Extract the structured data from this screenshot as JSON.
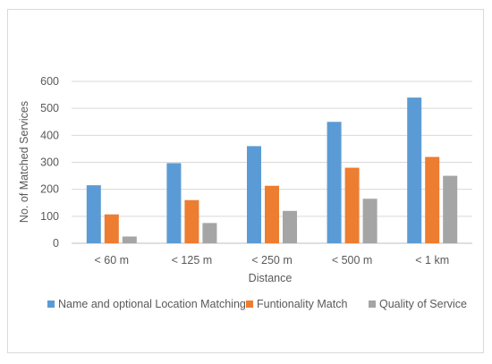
{
  "chart_data": {
    "type": "bar",
    "title": "",
    "xlabel": "Distance",
    "ylabel": "No. of Matched Services",
    "categories": [
      "< 60 m",
      "< 125 m",
      "< 250 m",
      "< 500 m",
      "< 1 km"
    ],
    "ylim": [
      0,
      600
    ],
    "yticks": [
      "0",
      "100",
      "200",
      "300",
      "400",
      "500",
      "600"
    ],
    "grid": true,
    "legend_position": "bottom",
    "series": [
      {
        "name": "Name and optional Location Matching",
        "color": "#5B9BD5",
        "values": [
          215,
          297,
          360,
          450,
          540
        ]
      },
      {
        "name": "Funtionality Match",
        "color": "#ED7D31",
        "values": [
          107,
          160,
          213,
          280,
          320
        ]
      },
      {
        "name": "Quality of Service",
        "color": "#A5A5A5",
        "values": [
          25,
          75,
          120,
          165,
          250
        ]
      }
    ]
  }
}
